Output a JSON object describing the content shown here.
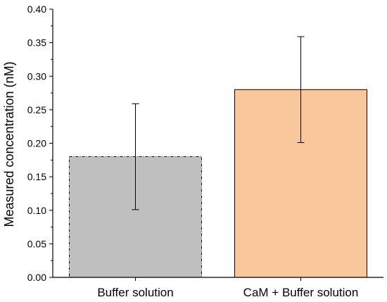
{
  "chart_data": {
    "type": "bar",
    "title": "",
    "xlabel": "",
    "ylabel": "Measured concentration (nM)",
    "ylim": [
      0,
      0.4
    ],
    "y_ticks": [
      "0.00",
      "0.05",
      "0.10",
      "0.15",
      "0.20",
      "0.25",
      "0.30",
      "0.35",
      "0.40"
    ],
    "grid": false,
    "legend": "none",
    "categories": [
      "Buffer solution",
      "CaM + Buffer solution"
    ],
    "values": [
      0.18,
      0.28
    ],
    "error_low": [
      0.101,
      0.201
    ],
    "error_high": [
      0.259,
      0.359
    ],
    "bar_colors": [
      "#bfbfbf",
      "#f8c89c"
    ],
    "bar_edge_styles": [
      "dash-dot",
      "solid"
    ]
  }
}
